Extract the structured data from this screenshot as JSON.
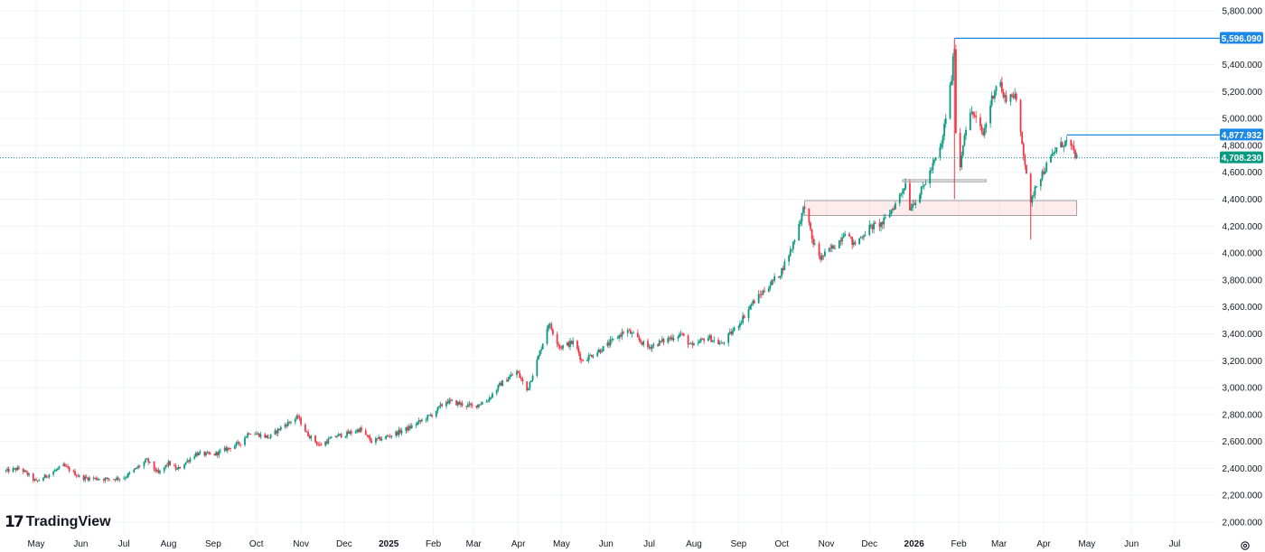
{
  "chart_data": {
    "type": "candlestick",
    "x_ticks": [
      {
        "label": "May",
        "date": "2024-05-01"
      },
      {
        "label": "Jun",
        "date": "2024-06-01"
      },
      {
        "label": "Jul",
        "date": "2024-07-01"
      },
      {
        "label": "Aug",
        "date": "2024-08-01"
      },
      {
        "label": "Sep",
        "date": "2024-09-01"
      },
      {
        "label": "Oct",
        "date": "2024-10-01"
      },
      {
        "label": "Nov",
        "date": "2024-11-01"
      },
      {
        "label": "Dec",
        "date": "2024-12-01"
      },
      {
        "label": "2025",
        "date": "2025-01-01",
        "bold": true
      },
      {
        "label": "Feb",
        "date": "2025-02-01"
      },
      {
        "label": "Mar",
        "date": "2025-03-01"
      },
      {
        "label": "Apr",
        "date": "2025-04-01"
      },
      {
        "label": "May",
        "date": "2025-05-01"
      },
      {
        "label": "Jun",
        "date": "2025-06-01"
      },
      {
        "label": "Jul",
        "date": "2025-07-01"
      },
      {
        "label": "Aug",
        "date": "2025-08-01"
      },
      {
        "label": "Sep",
        "date": "2025-09-01"
      },
      {
        "label": "Oct",
        "date": "2025-10-01"
      },
      {
        "label": "Nov",
        "date": "2025-11-01"
      },
      {
        "label": "Dec",
        "date": "2025-12-01"
      },
      {
        "label": "2026",
        "date": "2026-01-01",
        "bold": true
      },
      {
        "label": "Feb",
        "date": "2026-02-01"
      },
      {
        "label": "Mar",
        "date": "2026-03-01"
      },
      {
        "label": "Apr",
        "date": "2026-04-01"
      },
      {
        "label": "May",
        "date": "2026-05-01"
      },
      {
        "label": "Jun",
        "date": "2026-06-01"
      },
      {
        "label": "Jul",
        "date": "2026-07-01"
      }
    ],
    "y_ticks": [
      "5,800.000",
      "5,600.000",
      "5,400.000",
      "5,200.000",
      "5,000.000",
      "4,800.000",
      "4,600.000",
      "4,400.000",
      "4,200.000",
      "4,000.000",
      "3,800.000",
      "3,600.000",
      "3,400.000",
      "3,200.000",
      "3,000.000",
      "2,800.000",
      "2,600.000",
      "2,400.000",
      "2,200.000",
      "2,000.000"
    ],
    "ylim": [
      1975,
      5810
    ],
    "price_path": [
      [
        "2024-04-10",
        2380
      ],
      [
        "2024-04-20",
        2400
      ],
      [
        "2024-05-01",
        2300
      ],
      [
        "2024-05-20",
        2420
      ],
      [
        "2024-06-01",
        2330
      ],
      [
        "2024-06-20",
        2320
      ],
      [
        "2024-07-01",
        2330
      ],
      [
        "2024-07-17",
        2460
      ],
      [
        "2024-07-25",
        2360
      ],
      [
        "2024-08-01",
        2440
      ],
      [
        "2024-08-07",
        2390
      ],
      [
        "2024-08-20",
        2510
      ],
      [
        "2024-09-01",
        2500
      ],
      [
        "2024-09-20",
        2590
      ],
      [
        "2024-09-26",
        2670
      ],
      [
        "2024-10-10",
        2630
      ],
      [
        "2024-10-20",
        2720
      ],
      [
        "2024-10-30",
        2780
      ],
      [
        "2024-11-05",
        2660
      ],
      [
        "2024-11-14",
        2570
      ],
      [
        "2024-11-25",
        2640
      ],
      [
        "2024-12-01",
        2650
      ],
      [
        "2024-12-12",
        2690
      ],
      [
        "2024-12-20",
        2600
      ],
      [
        "2025-01-01",
        2640
      ],
      [
        "2025-01-15",
        2700
      ],
      [
        "2025-01-31",
        2800
      ],
      [
        "2025-02-10",
        2900
      ],
      [
        "2025-02-28",
        2860
      ],
      [
        "2025-03-10",
        2900
      ],
      [
        "2025-03-20",
        3030
      ],
      [
        "2025-03-31",
        3120
      ],
      [
        "2025-04-07",
        2980
      ],
      [
        "2025-04-15",
        3230
      ],
      [
        "2025-04-22",
        3480
      ],
      [
        "2025-04-30",
        3300
      ],
      [
        "2025-05-10",
        3340
      ],
      [
        "2025-05-15",
        3200
      ],
      [
        "2025-05-31",
        3300
      ],
      [
        "2025-06-15",
        3430
      ],
      [
        "2025-06-30",
        3300
      ],
      [
        "2025-07-23",
        3400
      ],
      [
        "2025-07-31",
        3300
      ],
      [
        "2025-08-10",
        3380
      ],
      [
        "2025-08-20",
        3320
      ],
      [
        "2025-09-01",
        3470
      ],
      [
        "2025-09-10",
        3620
      ],
      [
        "2025-09-30",
        3850
      ],
      [
        "2025-10-08",
        4040
      ],
      [
        "2025-10-17",
        4360
      ],
      [
        "2025-10-22",
        4100
      ],
      [
        "2025-10-28",
        3960
      ],
      [
        "2025-11-10",
        4090
      ],
      [
        "2025-11-14",
        4170
      ],
      [
        "2025-11-20",
        4060
      ],
      [
        "2025-12-01",
        4190
      ],
      [
        "2025-12-10",
        4220
      ],
      [
        "2025-12-20",
        4380
      ],
      [
        "2025-12-26",
        4520
      ],
      [
        "2025-12-29",
        4340
      ],
      [
        "2026-01-05",
        4440
      ],
      [
        "2026-01-12",
        4600
      ],
      [
        "2026-01-20",
        4800
      ],
      [
        "2026-01-27",
        5300
      ],
      [
        "2026-01-29",
        5550
      ],
      [
        "2026-01-30",
        4900
      ],
      [
        "2026-02-02",
        4650
      ],
      [
        "2026-02-05",
        4900
      ],
      [
        "2026-02-10",
        5050
      ],
      [
        "2026-02-18",
        4880
      ],
      [
        "2026-02-24",
        5150
      ],
      [
        "2026-03-01",
        5320
      ],
      [
        "2026-03-04",
        5150
      ],
      [
        "2026-03-12",
        5180
      ],
      [
        "2026-03-20",
        4600
      ],
      [
        "2026-03-23",
        4350
      ],
      [
        "2026-03-26",
        4500
      ],
      [
        "2026-04-02",
        4630
      ],
      [
        "2026-04-10",
        4780
      ],
      [
        "2026-04-17",
        4830
      ],
      [
        "2026-04-22",
        4750
      ],
      [
        "2026-04-24",
        4708
      ]
    ],
    "horizontal_levels": [
      {
        "label": "5,596.090",
        "value": 5596.09,
        "from": "2026-01-29",
        "color": "#1e88e5"
      },
      {
        "label": "4,877.932",
        "value": 4877.93,
        "from": "2026-04-17",
        "color": "#1e88e5"
      }
    ],
    "last_price": {
      "label": "4,708.230",
      "value": 4708.23,
      "color": "#089981"
    },
    "zones": [
      {
        "from": "2025-10-17",
        "to": "2026-04-24",
        "low": 4280,
        "high": 4390,
        "color": "#f23645"
      },
      {
        "from": "2025-12-24",
        "to": "2026-02-20",
        "low": 4530,
        "high": 4545,
        "color": "#787b86"
      }
    ],
    "colors": {
      "up": "#089981",
      "down": "#f23645",
      "grid": "#f0f3fa",
      "level": "#1e88e5"
    }
  },
  "branding": {
    "logo_mark": "17",
    "logo_text": "TradingView"
  },
  "icons": {
    "settings": "settings-gear-icon"
  }
}
